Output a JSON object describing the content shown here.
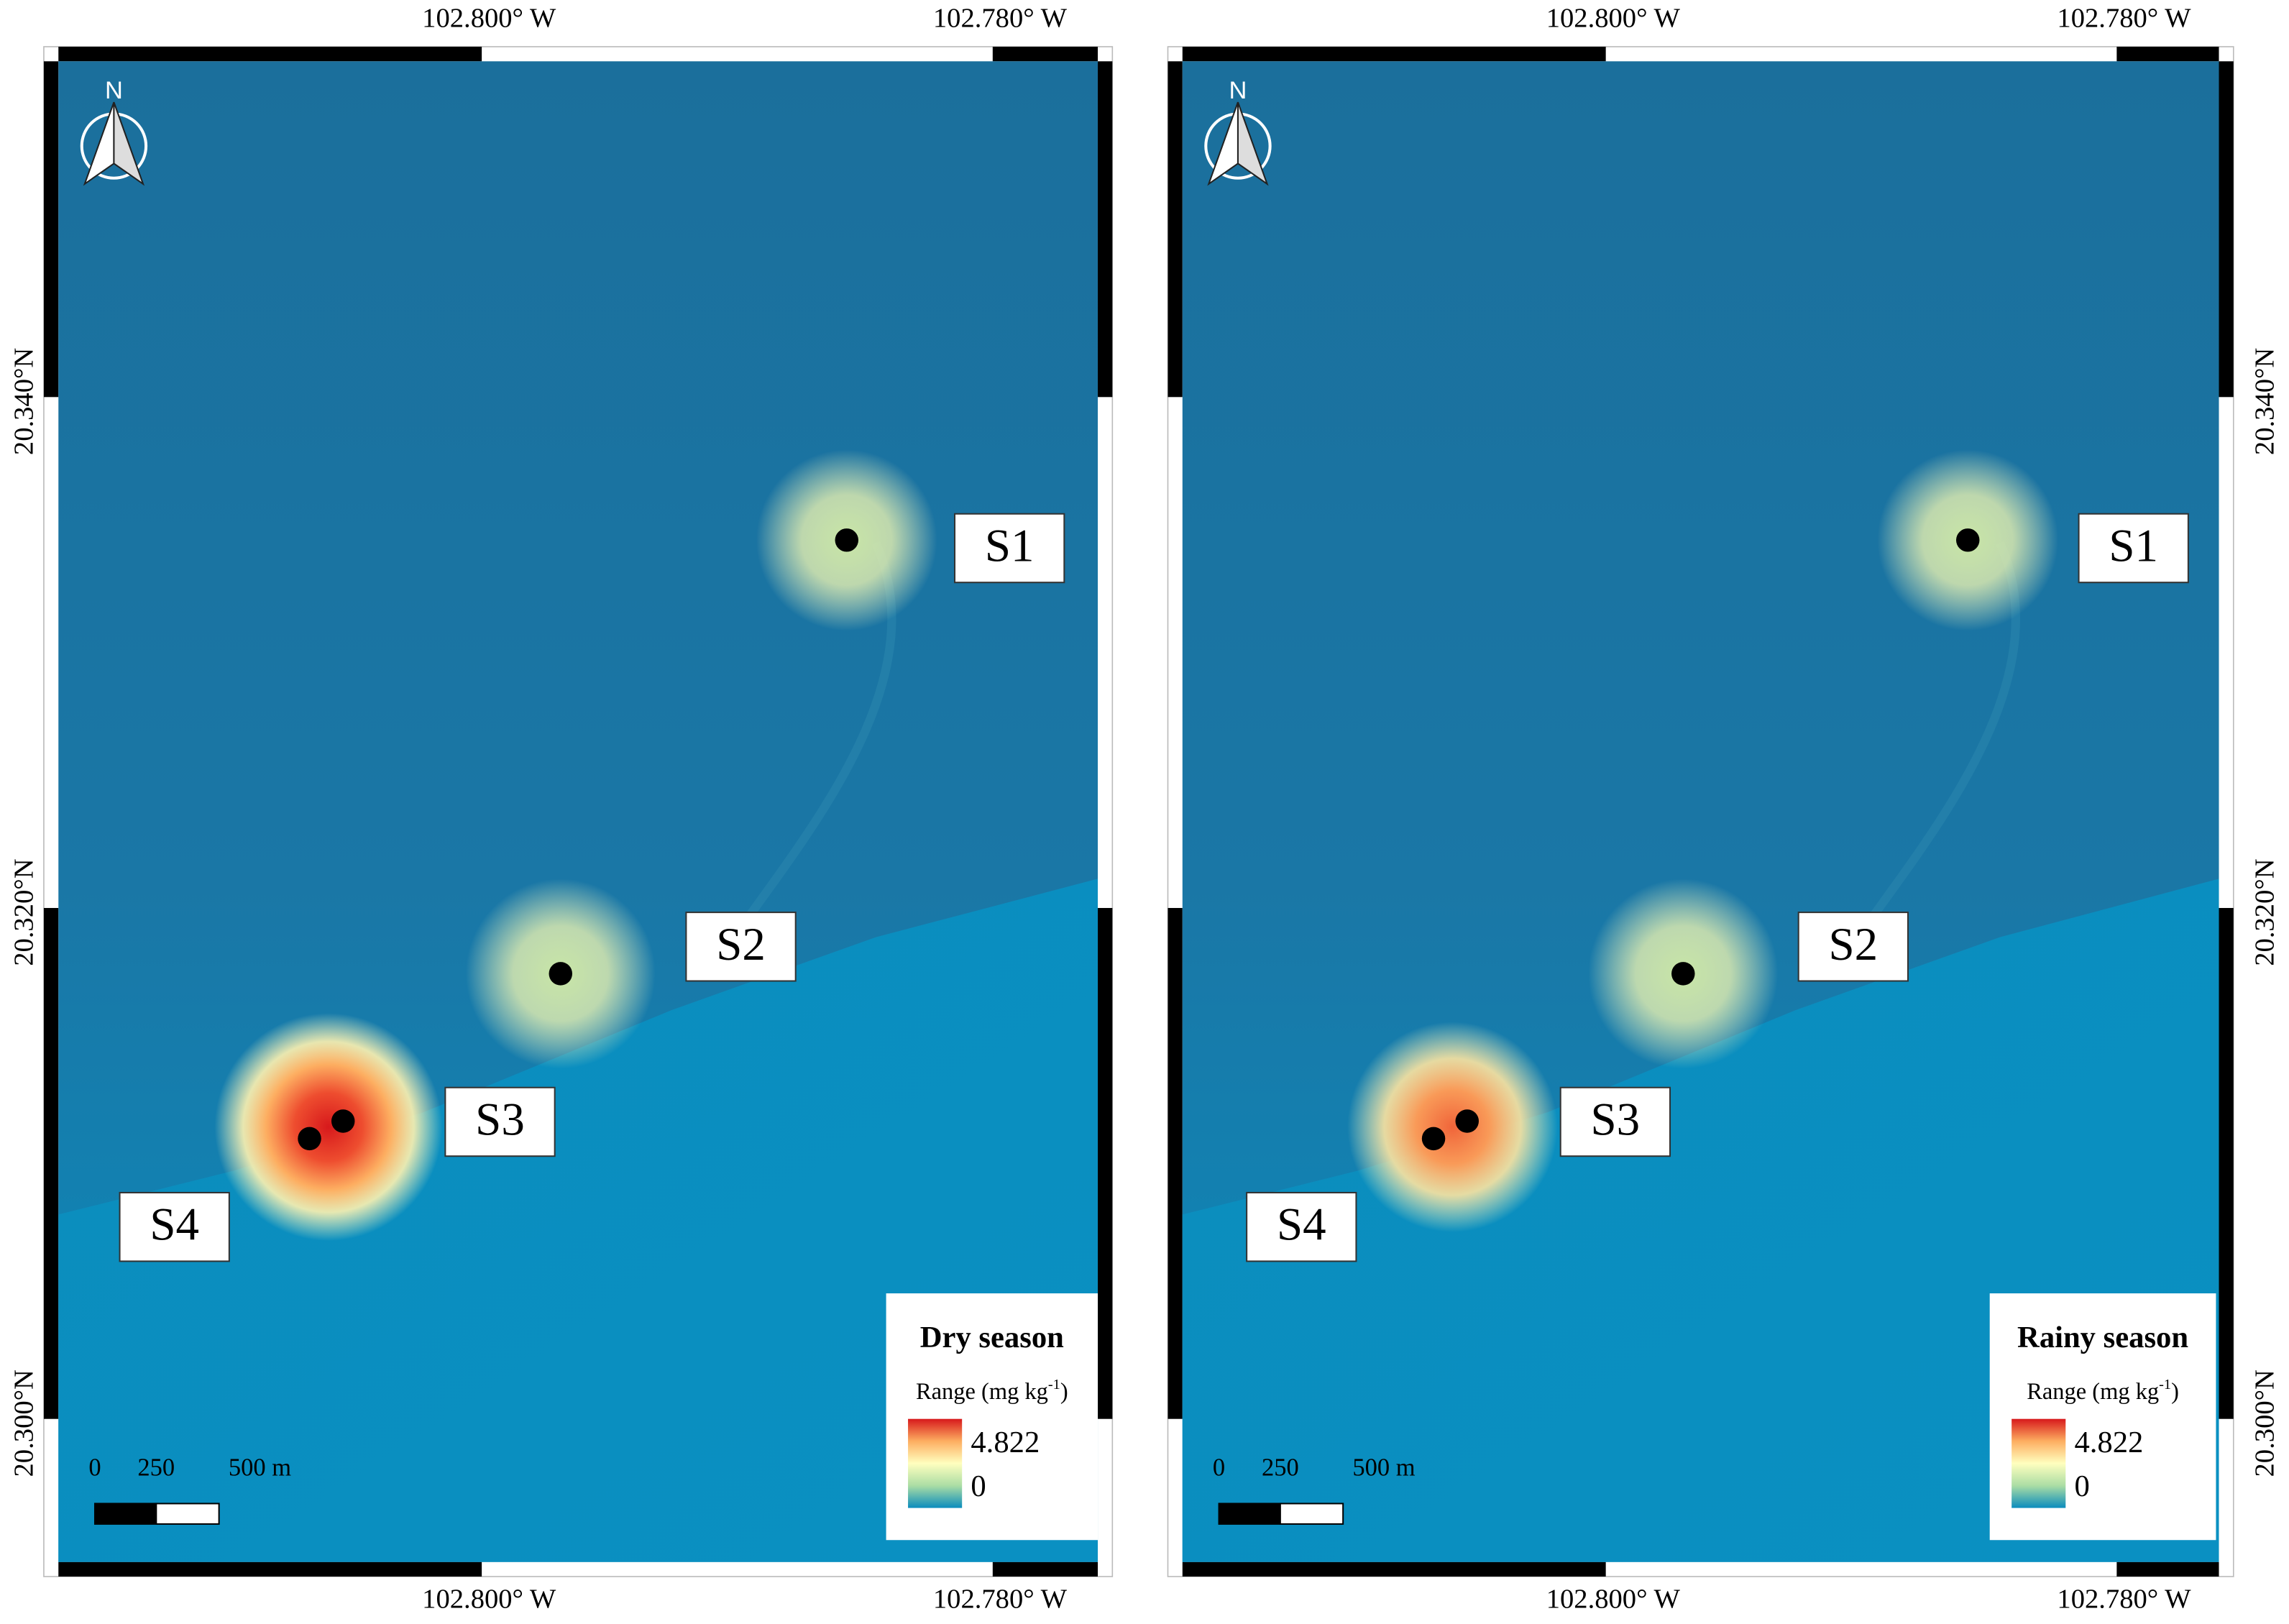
{
  "panels": [
    {
      "legend": {
        "title": "Dry season",
        "range_label": "Range (mg kg",
        "range_unit_sup": "-1",
        "range_close": ")",
        "max": "4.822",
        "min": "0"
      },
      "sites": [
        "S1",
        "S2",
        "S3",
        "S4"
      ],
      "north": "N",
      "scale": [
        "0",
        "250",
        "500 m"
      ],
      "lon_labels": [
        "102.800° W",
        "102.780° W"
      ],
      "lat_labels": [
        "20.340°N",
        "20.320°N",
        "20.300°N"
      ]
    },
    {
      "legend": {
        "title": "Rainy season",
        "range_label": "Range (mg kg",
        "range_unit_sup": "-1",
        "range_close": ")",
        "max": "4.822",
        "min": "0"
      },
      "sites": [
        "S1",
        "S2",
        "S3",
        "S4"
      ],
      "north": "N",
      "scale": [
        "0",
        "250",
        "500 m"
      ],
      "lon_labels": [
        "102.800° W",
        "102.780° W"
      ],
      "lat_labels": [
        "20.340°N",
        "20.320°N",
        "20.300°N"
      ]
    }
  ]
}
